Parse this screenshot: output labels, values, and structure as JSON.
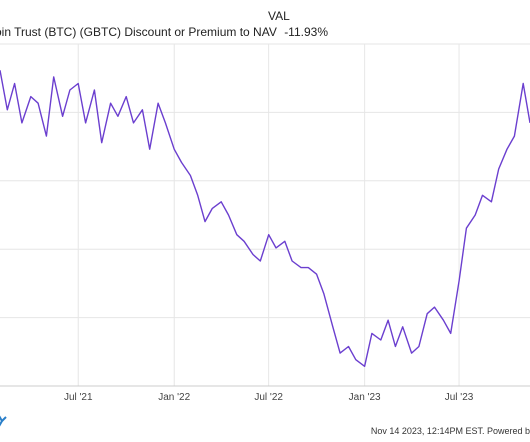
{
  "legend": {
    "value_header": "VAL",
    "series_label": "oin Trust (BTC) (GBTC) Discount or Premium to NAV",
    "current_value": "-11.93%"
  },
  "footer": {
    "text": "Nov 14 2023, 12:14PM EST. Powered b"
  },
  "colors": {
    "line": "#6b3fcf",
    "grid": "#e6e6e6",
    "axis": "#cccccc"
  },
  "chart_data": {
    "type": "line",
    "x_ticks": [
      "Jul '21",
      "Jan '22",
      "Jul '22",
      "Jan '23",
      "Jul '23"
    ],
    "x_range": [
      "2021-02-01",
      "2023-11-14"
    ],
    "ylim": [
      -52,
      0
    ],
    "grid": true,
    "series": [
      {
        "name": "oin Trust (BTC) (GBTC) Discount or Premium to NAV",
        "x": [
          "2021-02-01",
          "2021-02-15",
          "2021-03-01",
          "2021-03-15",
          "2021-04-01",
          "2021-04-15",
          "2021-05-01",
          "2021-05-15",
          "2021-06-01",
          "2021-06-15",
          "2021-07-01",
          "2021-07-15",
          "2021-08-01",
          "2021-08-15",
          "2021-09-01",
          "2021-09-15",
          "2021-10-01",
          "2021-10-15",
          "2021-11-01",
          "2021-11-15",
          "2021-12-01",
          "2021-12-15",
          "2022-01-01",
          "2022-01-15",
          "2022-02-01",
          "2022-02-15",
          "2022-03-01",
          "2022-03-15",
          "2022-04-01",
          "2022-04-15",
          "2022-05-01",
          "2022-05-15",
          "2022-06-01",
          "2022-06-15",
          "2022-07-01",
          "2022-07-15",
          "2022-08-01",
          "2022-08-15",
          "2022-09-01",
          "2022-09-15",
          "2022-10-01",
          "2022-10-15",
          "2022-11-01",
          "2022-11-15",
          "2022-12-01",
          "2022-12-15",
          "2023-01-01",
          "2023-01-15",
          "2023-02-01",
          "2023-02-15",
          "2023-03-01",
          "2023-03-15",
          "2023-04-01",
          "2023-04-15",
          "2023-05-01",
          "2023-05-15",
          "2023-06-01",
          "2023-06-15",
          "2023-07-01",
          "2023-07-15",
          "2023-08-01",
          "2023-08-15",
          "2023-09-01",
          "2023-09-15",
          "2023-10-01",
          "2023-10-15",
          "2023-11-01",
          "2023-11-14"
        ],
        "y": [
          -4,
          -10,
          -6,
          -12,
          -8,
          -9,
          -14,
          -5,
          -11,
          -7,
          -6,
          -12,
          -7,
          -15,
          -9,
          -11,
          -8,
          -12,
          -10,
          -16,
          -9,
          -12,
          -16,
          -18,
          -20,
          -23,
          -27,
          -25,
          -24,
          -26,
          -29,
          -30,
          -32,
          -33,
          -29,
          -31,
          -30,
          -33,
          -34,
          -34,
          -35,
          -38,
          -43,
          -47,
          -46,
          -48,
          -49,
          -44,
          -45,
          -42,
          -46,
          -43,
          -47,
          -46,
          -41,
          -40,
          -42,
          -44,
          -36,
          -28,
          -26,
          -23,
          -24,
          -19,
          -16,
          -14,
          -6,
          -12
        ]
      }
    ]
  }
}
